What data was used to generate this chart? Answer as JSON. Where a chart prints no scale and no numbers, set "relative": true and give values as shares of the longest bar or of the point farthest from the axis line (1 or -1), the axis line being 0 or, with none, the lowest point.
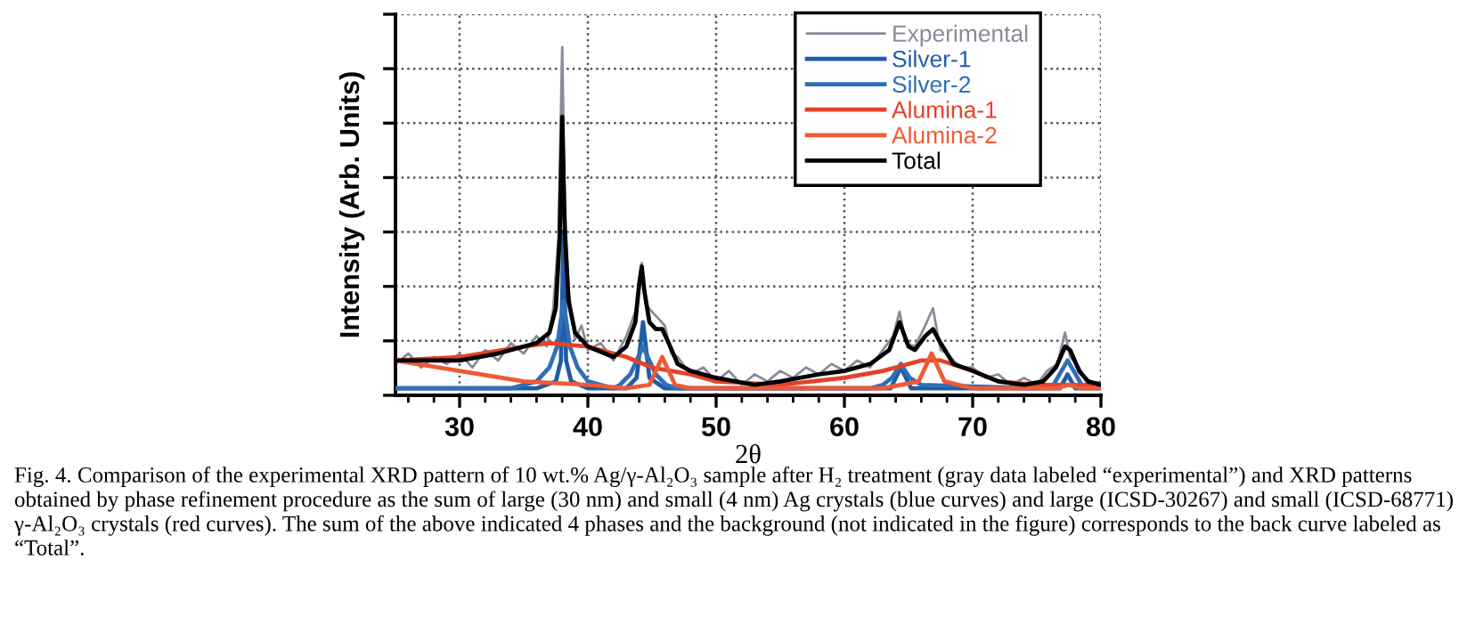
{
  "chart_data": {
    "type": "line",
    "relative": true,
    "xlabel": "2θ",
    "ylabel": "Intensity (Arb. Units)",
    "xlim": [
      25,
      80
    ],
    "xticks": [
      30,
      40,
      50,
      60,
      70,
      80
    ],
    "grid": true,
    "legend": "top right",
    "line_style": "solid",
    "marker": "none",
    "series": [
      {
        "name": "Experimental",
        "color": "#8a8a9a",
        "x": [
          25,
          26,
          27,
          28,
          29,
          30,
          31,
          32,
          33,
          34,
          35,
          36,
          36.8,
          37.3,
          37.7,
          38.0,
          38.2,
          38.5,
          39,
          39.5,
          40,
          41,
          42,
          43,
          43.7,
          44.0,
          44.2,
          44.5,
          45,
          45.5,
          46,
          46.5,
          47,
          48,
          49,
          50,
          51,
          52,
          53,
          54,
          55,
          56,
          57,
          58,
          59,
          60,
          61,
          62,
          63,
          63.8,
          64.3,
          64.8,
          65.5,
          66.3,
          66.9,
          67.5,
          68,
          69,
          70,
          71,
          72,
          73,
          74,
          75,
          75.8,
          76.6,
          77.2,
          77.6,
          78.3,
          79,
          80
        ],
        "values": [
          0.09,
          0.12,
          0.08,
          0.11,
          0.09,
          0.12,
          0.08,
          0.13,
          0.1,
          0.15,
          0.12,
          0.17,
          0.14,
          0.25,
          0.45,
          1.0,
          0.55,
          0.3,
          0.16,
          0.2,
          0.13,
          0.15,
          0.1,
          0.17,
          0.24,
          0.3,
          0.38,
          0.26,
          0.24,
          0.22,
          0.2,
          0.12,
          0.11,
          0.06,
          0.08,
          0.04,
          0.07,
          0.03,
          0.06,
          0.04,
          0.07,
          0.05,
          0.08,
          0.06,
          0.09,
          0.07,
          0.1,
          0.08,
          0.13,
          0.17,
          0.24,
          0.15,
          0.14,
          0.2,
          0.25,
          0.13,
          0.12,
          0.08,
          0.08,
          0.05,
          0.06,
          0.03,
          0.05,
          0.03,
          0.07,
          0.09,
          0.18,
          0.11,
          0.08,
          0.03,
          0.04
        ]
      },
      {
        "name": "Silver-1",
        "color": "#1f5ca6",
        "x": [
          25,
          36,
          37.5,
          37.9,
          38.1,
          38.3,
          38.7,
          40,
          43,
          43.8,
          44.3,
          44.8,
          46,
          63.6,
          64.4,
          65.2,
          76.8,
          77.4,
          78,
          80
        ],
        "values": [
          0.02,
          0.02,
          0.04,
          0.1,
          0.47,
          0.1,
          0.04,
          0.02,
          0.02,
          0.05,
          0.21,
          0.05,
          0.02,
          0.02,
          0.08,
          0.02,
          0.02,
          0.06,
          0.02,
          0.02
        ]
      },
      {
        "name": "Silver-2",
        "color": "#2f6fb8",
        "x": [
          25,
          34,
          36,
          37,
          37.6,
          38.1,
          38.6,
          39.2,
          40,
          42,
          42.5,
          43.3,
          44.3,
          45.3,
          46.1,
          47,
          62,
          63,
          63.7,
          64.4,
          65.1,
          66,
          75,
          76.3,
          77.4,
          78.5,
          80
        ],
        "values": [
          0.02,
          0.02,
          0.04,
          0.08,
          0.14,
          0.27,
          0.14,
          0.08,
          0.04,
          0.02,
          0.03,
          0.06,
          0.14,
          0.06,
          0.03,
          0.02,
          0.02,
          0.03,
          0.05,
          0.09,
          0.05,
          0.03,
          0.02,
          0.03,
          0.1,
          0.03,
          0.02
        ]
      },
      {
        "name": "Alumina-1",
        "color": "#e5412a",
        "x": [
          25,
          30,
          35,
          37,
          40,
          43,
          45,
          48,
          50,
          55,
          60,
          63,
          66,
          67.5,
          70,
          72,
          75,
          80
        ],
        "values": [
          0.1,
          0.11,
          0.14,
          0.15,
          0.14,
          0.11,
          0.08,
          0.06,
          0.04,
          0.03,
          0.05,
          0.07,
          0.1,
          0.1,
          0.07,
          0.04,
          0.03,
          0.03
        ]
      },
      {
        "name": "Alumina-2",
        "color": "#ee5a36",
        "x": [
          25,
          30,
          35,
          40,
          43,
          44.8,
          45.8,
          46.8,
          48,
          55,
          63,
          65.8,
          66.8,
          67.8,
          70,
          76.5,
          77.5,
          78.5,
          80
        ],
        "values": [
          0.1,
          0.07,
          0.04,
          0.03,
          0.02,
          0.03,
          0.11,
          0.03,
          0.02,
          0.02,
          0.02,
          0.04,
          0.12,
          0.04,
          0.02,
          0.02,
          0.03,
          0.02,
          0.02
        ]
      },
      {
        "name": "Total",
        "color": "#000000",
        "x": [
          25,
          30,
          33,
          35,
          36,
          37,
          37.5,
          37.8,
          38,
          38.2,
          38.5,
          39,
          40,
          42,
          43,
          43.7,
          44,
          44.2,
          44.4,
          44.8,
          45.3,
          45.8,
          46.3,
          47,
          48,
          50,
          53,
          55,
          58,
          60,
          62,
          63.5,
          64.3,
          65,
          65.5,
          66.3,
          66.9,
          67.5,
          68.5,
          70,
          72,
          74,
          75.5,
          76.5,
          77.2,
          77.6,
          78.3,
          79,
          80
        ],
        "values": [
          0.1,
          0.1,
          0.12,
          0.14,
          0.15,
          0.18,
          0.25,
          0.45,
          0.8,
          0.47,
          0.27,
          0.18,
          0.14,
          0.11,
          0.14,
          0.21,
          0.32,
          0.37,
          0.3,
          0.21,
          0.19,
          0.19,
          0.15,
          0.09,
          0.07,
          0.05,
          0.03,
          0.04,
          0.06,
          0.07,
          0.09,
          0.13,
          0.21,
          0.14,
          0.13,
          0.17,
          0.19,
          0.15,
          0.09,
          0.07,
          0.04,
          0.03,
          0.04,
          0.08,
          0.14,
          0.13,
          0.07,
          0.04,
          0.03
        ]
      }
    ],
    "annotations": [
      "Fig. 4. Comparison of the experimental XRD pattern of 10 wt.% Ag/γ-Al₂O₃ sample after H₂ treatment (gray data labeled “experimental”) and XRD patterns obtained by phase refinement procedure as the sum of large (30 nm) and small (4 nm) Ag crystals (blue curves) and large (ICSD-30267) and small (ICSD-68771) γ-Al₂O₃ crystals (red curves). The sum of the above indicated 4 phases and the background (not indicated in the figure) corresponds to the back curve labeled as “Total”."
    ]
  }
}
